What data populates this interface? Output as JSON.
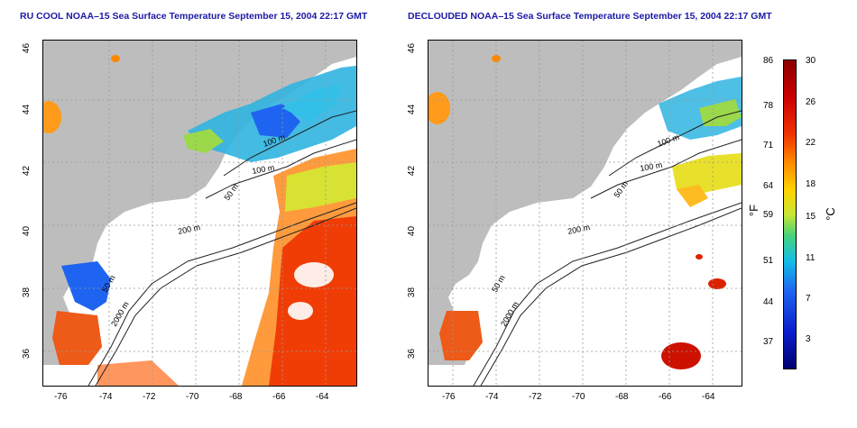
{
  "titles": {
    "left": "RU COOL NOAA–15 Sea Surface Temperature September 15, 2004 22:17 GMT",
    "right": "DECLOUDED NOAA–15 Sea Surface Temperature September 15, 2004 22:17 GMT"
  },
  "axes": {
    "x_ticks": [
      "-76",
      "-74",
      "-72",
      "-70",
      "-68",
      "-66",
      "-64"
    ],
    "y_ticks": [
      "46",
      "44",
      "42",
      "40",
      "38",
      "36"
    ]
  },
  "contours": {
    "label_100a": "100 m",
    "label_100b": "100 m",
    "label_50a": "50 m",
    "label_200": "200 m",
    "label_50b": "50 m",
    "label_2000": "2000 m"
  },
  "colorbar": {
    "fahrenheit_ticks": [
      "86",
      "78",
      "71",
      "64",
      "59",
      "51",
      "44",
      "37"
    ],
    "celsius_ticks": [
      "30",
      "26",
      "22",
      "18",
      "15",
      "11",
      "7",
      "3"
    ],
    "unit_f": "°F",
    "unit_c": "°C"
  },
  "colors": {
    "land": "#bdbdbd",
    "title": "#1a1aa6",
    "warm": "#e83a10",
    "cool": "#1e64f0"
  }
}
